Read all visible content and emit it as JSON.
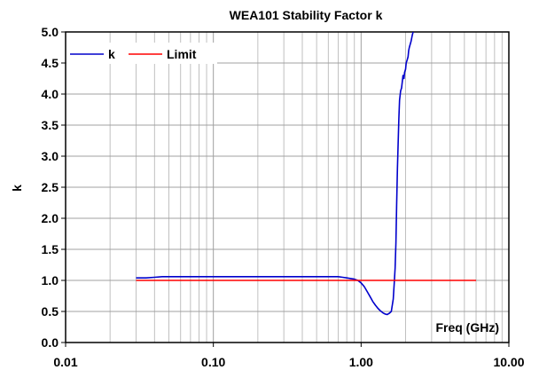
{
  "chart_data": {
    "type": "line",
    "title": "WEA101 Stability Factor k",
    "xlabel": "Freq (GHz)",
    "ylabel": "k",
    "xscale": "log",
    "xlim": [
      0.01,
      10
    ],
    "ylim": [
      0,
      5
    ],
    "x_ticks": [
      "0.01",
      "0.10",
      "1.00",
      "10.00"
    ],
    "y_ticks": [
      "0.0",
      "0.5",
      "1.0",
      "1.5",
      "2.0",
      "2.5",
      "3.0",
      "3.5",
      "4.0",
      "4.5",
      "5.0"
    ],
    "grid": true,
    "legend_position": "top-left",
    "series": [
      {
        "name": "k",
        "color": "#0000cc",
        "x": [
          0.03,
          0.035,
          0.04,
          0.045,
          0.05,
          0.1,
          0.2,
          0.4,
          0.6,
          0.7,
          0.75,
          0.8,
          0.85,
          0.9,
          0.95,
          1.0,
          1.05,
          1.1,
          1.15,
          1.2,
          1.25,
          1.3,
          1.35,
          1.4,
          1.45,
          1.5,
          1.55,
          1.6,
          1.65,
          1.68,
          1.7,
          1.72,
          1.74,
          1.76,
          1.78,
          1.8,
          1.82,
          1.85,
          1.88,
          1.9,
          1.92,
          1.95,
          1.97,
          2.0,
          2.02,
          2.05,
          2.08,
          2.1,
          2.12,
          2.15,
          2.18,
          2.2,
          2.22,
          2.25
        ],
        "y": [
          1.04,
          1.04,
          1.05,
          1.06,
          1.06,
          1.06,
          1.06,
          1.06,
          1.06,
          1.06,
          1.05,
          1.04,
          1.03,
          1.02,
          1.0,
          0.96,
          0.9,
          0.82,
          0.74,
          0.66,
          0.6,
          0.55,
          0.51,
          0.48,
          0.46,
          0.45,
          0.47,
          0.5,
          0.7,
          1.0,
          1.2,
          1.6,
          2.2,
          2.8,
          3.2,
          3.6,
          3.9,
          4.05,
          4.1,
          4.2,
          4.3,
          4.25,
          4.35,
          4.4,
          4.5,
          4.55,
          4.6,
          4.7,
          4.75,
          4.8,
          4.85,
          4.9,
          4.95,
          5.0
        ]
      },
      {
        "name": "Limit",
        "color": "#ff0000",
        "x": [
          0.03,
          6.0
        ],
        "y": [
          1.0,
          1.0
        ]
      }
    ]
  }
}
